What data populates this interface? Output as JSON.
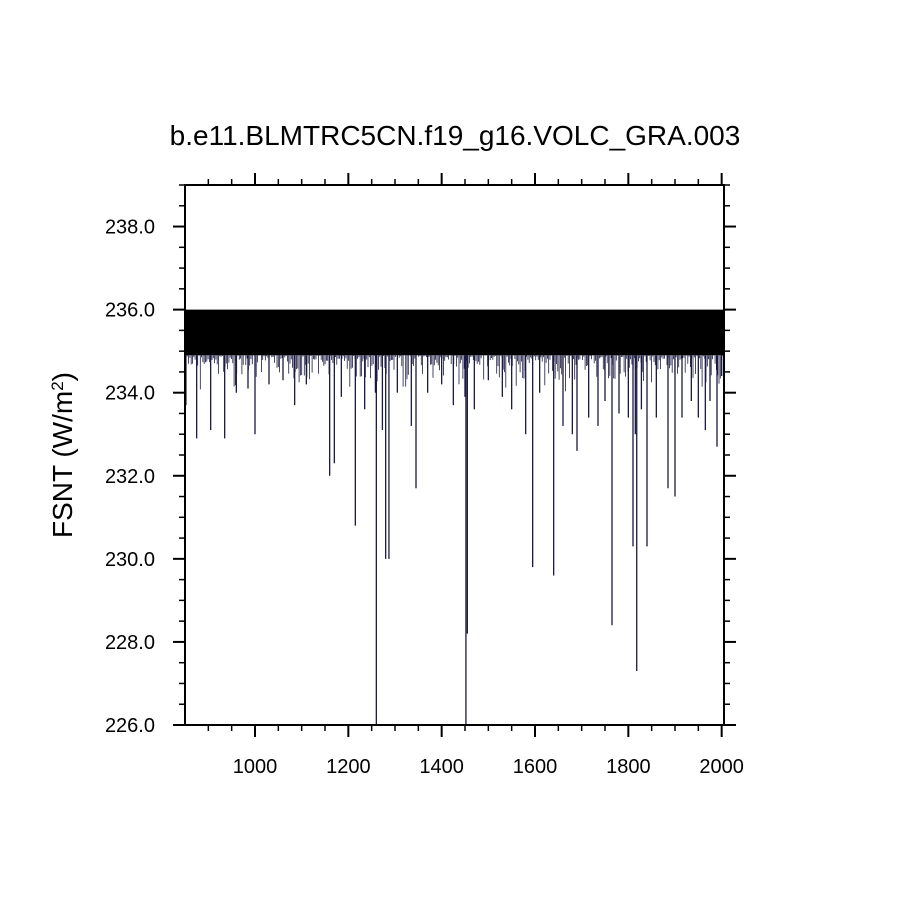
{
  "chart_data": {
    "type": "line",
    "title": "b.e11.BLMTRC5CN.f19_g16.VOLC_GRA.003",
    "xlabel": "",
    "ylabel": "FSNT (W/m",
    "ylabel_sup": "2",
    "ylabel_close": ")",
    "xlim": [
      850,
      2005
    ],
    "ylim": [
      226.0,
      239.0
    ],
    "xticks": [
      1000,
      1200,
      1400,
      1600,
      1800,
      2000
    ],
    "xtick_labels": [
      "1000",
      "1200",
      "1400",
      "1600",
      "1800",
      "2000"
    ],
    "yticks": [
      226.0,
      228.0,
      230.0,
      232.0,
      234.0,
      236.0,
      238.0
    ],
    "ytick_labels": [
      "226.0",
      "228.0",
      "230.0",
      "232.0",
      "234.0",
      "236.0",
      "238.0"
    ],
    "grid": false,
    "series_color": "#1a1a40",
    "baseline_band": [
      234.9,
      236.0
    ],
    "dips": [
      [
        852,
        233.7
      ],
      [
        875,
        232.9
      ],
      [
        885,
        236.2
      ],
      [
        905,
        233.1
      ],
      [
        935,
        232.9
      ],
      [
        960,
        234.0
      ],
      [
        985,
        234.1
      ],
      [
        1000,
        233.0
      ],
      [
        1030,
        234.2
      ],
      [
        1060,
        234.3
      ],
      [
        1085,
        233.7
      ],
      [
        1110,
        234.2
      ],
      [
        1160,
        232.0
      ],
      [
        1170,
        232.3
      ],
      [
        1185,
        233.9
      ],
      [
        1215,
        230.8
      ],
      [
        1235,
        233.6
      ],
      [
        1258,
        234.0
      ],
      [
        1260,
        226.0
      ],
      [
        1273,
        233.1
      ],
      [
        1280,
        230.0
      ],
      [
        1287,
        230.0
      ],
      [
        1305,
        234.0
      ],
      [
        1335,
        233.2
      ],
      [
        1345,
        231.7
      ],
      [
        1370,
        234.0
      ],
      [
        1400,
        234.2
      ],
      [
        1425,
        233.7
      ],
      [
        1450,
        233.9
      ],
      [
        1452,
        226.0
      ],
      [
        1455,
        228.2
      ],
      [
        1470,
        233.6
      ],
      [
        1500,
        234.3
      ],
      [
        1530,
        233.9
      ],
      [
        1550,
        233.6
      ],
      [
        1580,
        233.0
      ],
      [
        1595,
        229.8
      ],
      [
        1610,
        234.0
      ],
      [
        1640,
        229.6
      ],
      [
        1660,
        233.2
      ],
      [
        1680,
        233.0
      ],
      [
        1690,
        232.6
      ],
      [
        1715,
        233.4
      ],
      [
        1735,
        233.2
      ],
      [
        1750,
        233.8
      ],
      [
        1765,
        228.4
      ],
      [
        1780,
        233.5
      ],
      [
        1800,
        233.4
      ],
      [
        1810,
        230.3
      ],
      [
        1815,
        233.0
      ],
      [
        1818,
        227.3
      ],
      [
        1828,
        233.6
      ],
      [
        1840,
        230.3
      ],
      [
        1860,
        233.4
      ],
      [
        1885,
        231.7
      ],
      [
        1900,
        231.5
      ],
      [
        1915,
        233.4
      ],
      [
        1935,
        233.8
      ],
      [
        1950,
        233.4
      ],
      [
        1965,
        233.1
      ],
      [
        1975,
        233.8
      ],
      [
        1990,
        232.7
      ],
      [
        2000,
        234.4
      ]
    ]
  }
}
